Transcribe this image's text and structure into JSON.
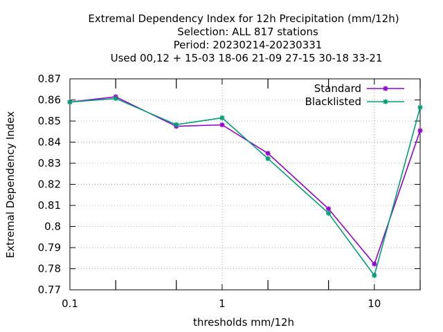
{
  "chart_data": {
    "type": "line",
    "title_lines": [
      "Extremal Dependency Index  for 12h Precipitation (mm/12h)",
      "Selection: ALL    817 stations",
      "Period: 20230214-20230331",
      "Used  00,12  + 15-03 18-06 21-09 27-15 30-18 33-21"
    ],
    "xlabel": "thresholds mm/12h",
    "ylabel": "Extremal Dependency Index",
    "x_scale": "log",
    "xlim": [
      0.1,
      20
    ],
    "ylim": [
      0.77,
      0.87
    ],
    "x_ticks": [
      0.1,
      1,
      10
    ],
    "x_tick_labels": [
      "0.1",
      "1",
      "10"
    ],
    "x_minor_ticks": [
      0.2,
      0.5,
      2,
      5,
      20
    ],
    "y_ticks": [
      0.77,
      0.78,
      0.79,
      0.8,
      0.81,
      0.82,
      0.83,
      0.84,
      0.85,
      0.86,
      0.87
    ],
    "y_tick_labels": [
      "0.77",
      "0.78",
      "0.79",
      "0.8",
      "0.81",
      "0.82",
      "0.83",
      "0.84",
      "0.85",
      "0.86",
      "0.87"
    ],
    "grid": true,
    "legend_position": "top-right",
    "x": [
      0.1,
      0.2,
      0.5,
      1,
      2,
      5,
      10,
      20
    ],
    "series": [
      {
        "name": "Standard",
        "color": "#9400d3",
        "marker": "star",
        "values": [
          0.859,
          0.8615,
          0.8475,
          0.8482,
          0.8347,
          0.8084,
          0.7822,
          0.8455
        ]
      },
      {
        "name": "Blacklisted",
        "color": "#009e73",
        "marker": "star",
        "values": [
          0.859,
          0.8607,
          0.8483,
          0.8515,
          0.8322,
          0.8063,
          0.7768,
          0.8565
        ]
      }
    ]
  }
}
